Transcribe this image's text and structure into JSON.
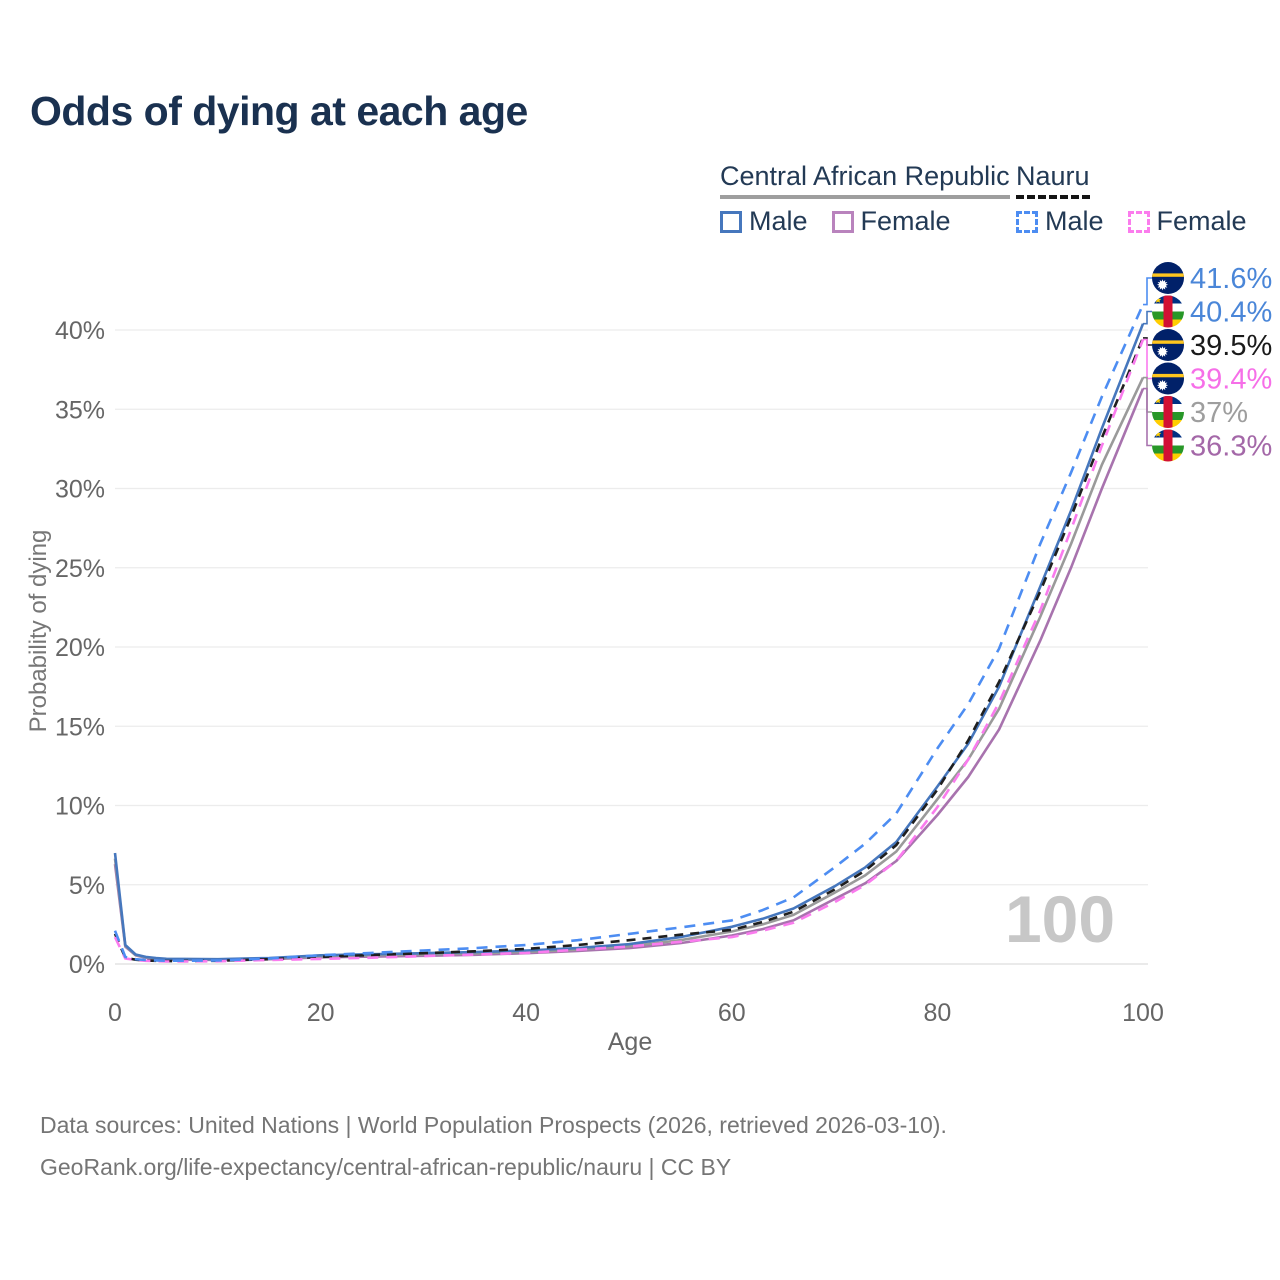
{
  "title": "Odds of dying at each age",
  "legend": {
    "groups": [
      {
        "name": "Central African Republic",
        "underline_style": "solid",
        "underline_color": "#9e9e9e",
        "items": [
          {
            "label": "Male",
            "swatch_color": "#4677bd",
            "swatch_dashed": false
          },
          {
            "label": "Female",
            "swatch_color": "#b983bd",
            "swatch_dashed": false
          }
        ]
      },
      {
        "name": "Nauru",
        "underline_style": "dashed",
        "underline_color": "#141414",
        "items": [
          {
            "label": "Male",
            "swatch_color": "#4d8df2",
            "swatch_dashed": true
          },
          {
            "label": "Female",
            "swatch_color": "#fb7ced",
            "swatch_dashed": true
          }
        ]
      }
    ]
  },
  "watermark_age": "100",
  "axes": {
    "x": {
      "label": "Age",
      "ticks": [
        "0",
        "20",
        "40",
        "60",
        "80",
        "100"
      ],
      "tick_values": [
        0,
        20,
        40,
        60,
        80,
        100
      ],
      "range": [
        0,
        100
      ]
    },
    "y": {
      "label": "Probability of dying",
      "ticks": [
        "0%",
        "5%",
        "10%",
        "15%",
        "20%",
        "25%",
        "30%",
        "35%",
        "40%"
      ],
      "tick_values": [
        0,
        5,
        10,
        15,
        20,
        25,
        30,
        35,
        40
      ],
      "range_pct": [
        0,
        43
      ],
      "grid": true
    }
  },
  "chart_data": {
    "type": "line",
    "title": "Odds of dying at each age",
    "xlabel": "Age",
    "ylabel": "Probability of dying",
    "x_ages": [
      0,
      1,
      2,
      3,
      4,
      5,
      10,
      15,
      20,
      25,
      30,
      35,
      40,
      45,
      50,
      55,
      60,
      63,
      66,
      70,
      73,
      76,
      80,
      83,
      86,
      90,
      93,
      96,
      100
    ],
    "unit": "percent",
    "series": [
      {
        "id": "nauru-male",
        "name": "Nauru Male",
        "country": "Nauru",
        "flag": "nauru",
        "dashed": true,
        "color": "#4d8df2",
        "label_color": "#4a86d8",
        "end_label": "41.6%",
        "end_value": 41.6,
        "values": [
          2.1,
          0.45,
          0.3,
          0.25,
          0.22,
          0.2,
          0.22,
          0.35,
          0.55,
          0.7,
          0.85,
          1.0,
          1.2,
          1.5,
          1.9,
          2.3,
          2.75,
          3.4,
          4.2,
          6.1,
          7.6,
          9.5,
          13.6,
          16.4,
          19.9,
          26.5,
          31.0,
          35.8,
          41.6
        ]
      },
      {
        "id": "car-male",
        "name": "Central African Republic Male",
        "country": "Central African Republic",
        "flag": "car",
        "dashed": false,
        "color": "#4677bd",
        "label_color": "#4a86d8",
        "end_label": "40.4%",
        "end_value": 40.4,
        "values": [
          7.0,
          1.2,
          0.6,
          0.45,
          0.38,
          0.33,
          0.3,
          0.38,
          0.55,
          0.62,
          0.68,
          0.75,
          0.85,
          1.0,
          1.25,
          1.7,
          2.35,
          2.85,
          3.5,
          4.9,
          6.1,
          7.7,
          11.2,
          13.9,
          17.5,
          23.8,
          28.6,
          33.8,
          40.4
        ]
      },
      {
        "id": "nauru-total",
        "name": "Nauru (both sexes)",
        "country": "Nauru",
        "flag": "nauru",
        "dashed": true,
        "color": "#1f1f1f",
        "label_color": "#1a1a1a",
        "end_label": "39.5%",
        "end_value": 39.5,
        "values": [
          1.9,
          0.4,
          0.27,
          0.22,
          0.2,
          0.18,
          0.2,
          0.3,
          0.45,
          0.57,
          0.68,
          0.8,
          0.95,
          1.2,
          1.5,
          1.85,
          2.15,
          2.65,
          3.3,
          4.7,
          5.9,
          7.5,
          11.0,
          14.1,
          17.8,
          23.5,
          28.2,
          33.2,
          39.5
        ]
      },
      {
        "id": "nauru-female",
        "name": "Nauru Female",
        "country": "Nauru",
        "flag": "nauru",
        "dashed": true,
        "color": "#fa7bee",
        "label_color": "#f66fe8",
        "end_label": "39.4%",
        "end_value": 39.4,
        "values": [
          1.7,
          0.35,
          0.25,
          0.2,
          0.18,
          0.16,
          0.17,
          0.25,
          0.32,
          0.4,
          0.5,
          0.6,
          0.7,
          0.9,
          1.1,
          1.4,
          1.7,
          2.1,
          2.6,
          3.9,
          5.0,
          6.5,
          9.9,
          12.9,
          16.5,
          22.3,
          27.4,
          32.7,
          39.4
        ]
      },
      {
        "id": "car-total",
        "name": "Central African Republic (both sexes)",
        "country": "Central African Republic",
        "flag": "car",
        "dashed": false,
        "color": "#9a9a9a",
        "label_color": "#9e9e9e",
        "end_label": "37%",
        "end_value": 37.0,
        "values": [
          6.65,
          1.15,
          0.57,
          0.42,
          0.35,
          0.3,
          0.27,
          0.33,
          0.48,
          0.54,
          0.6,
          0.67,
          0.77,
          0.9,
          1.12,
          1.5,
          2.05,
          2.5,
          3.1,
          4.5,
          5.6,
          7.1,
          10.4,
          12.9,
          16.1,
          21.9,
          26.5,
          31.5,
          37.0
        ]
      },
      {
        "id": "car-female",
        "name": "Central African Republic Female",
        "country": "Central African Republic",
        "flag": "car",
        "dashed": false,
        "color": "#a873ae",
        "label_color": "#a468a8",
        "end_label": "36.3%",
        "end_value": 36.3,
        "values": [
          6.3,
          1.1,
          0.55,
          0.4,
          0.33,
          0.28,
          0.25,
          0.3,
          0.42,
          0.47,
          0.52,
          0.58,
          0.68,
          0.82,
          1.0,
          1.32,
          1.8,
          2.2,
          2.75,
          4.1,
          5.1,
          6.5,
          9.4,
          11.8,
          14.8,
          20.4,
          25.0,
          30.0,
          36.3
        ]
      }
    ],
    "legend_position": "top-right",
    "grid": "horizontal-only"
  },
  "footer": {
    "line1": "Data sources: United Nations | World Population Prospects (2026, retrieved 2026-03-10).",
    "line2": "GeoRank.org/life-expectancy/central-african-republic/nauru | CC BY"
  }
}
